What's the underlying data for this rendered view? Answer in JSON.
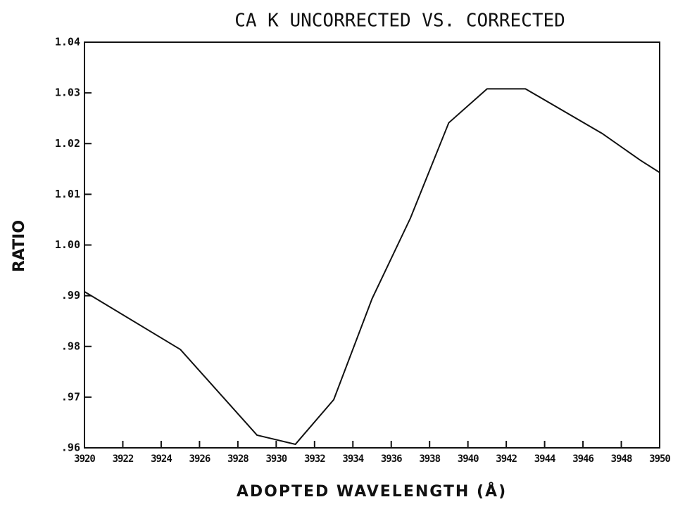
{
  "chart_data": {
    "type": "line",
    "title": "CA K  UNCORRECTED VS. CORRECTED",
    "xlabel": "ADOPTED WAVELENGTH (Å)",
    "ylabel": "RATIO",
    "x": [
      3920,
      3925,
      3929,
      3931,
      3933,
      3935,
      3937,
      3939,
      3941,
      3943,
      3947,
      3949,
      3950
    ],
    "values": [
      0.9908,
      0.9794,
      0.9625,
      0.9607,
      0.9695,
      0.9894,
      1.0053,
      1.0241,
      1.0308,
      1.0308,
      1.022,
      1.0167,
      1.0143
    ],
    "color": "#111111",
    "xlim": [
      3920,
      3950
    ],
    "ylim": [
      0.96,
      1.04
    ],
    "xticks": [
      3920,
      3922,
      3924,
      3926,
      3928,
      3930,
      3932,
      3934,
      3936,
      3938,
      3940,
      3942,
      3944,
      3946,
      3948,
      3950
    ],
    "yticks": [
      {
        "value": 0.96,
        "label": ".96"
      },
      {
        "value": 0.97,
        "label": ".97"
      },
      {
        "value": 0.98,
        "label": ".98"
      },
      {
        "value": 0.99,
        "label": ".99"
      },
      {
        "value": 1.0,
        "label": "1.00"
      },
      1.01,
      1.02,
      1.03,
      1.04
    ],
    "grid": false
  }
}
